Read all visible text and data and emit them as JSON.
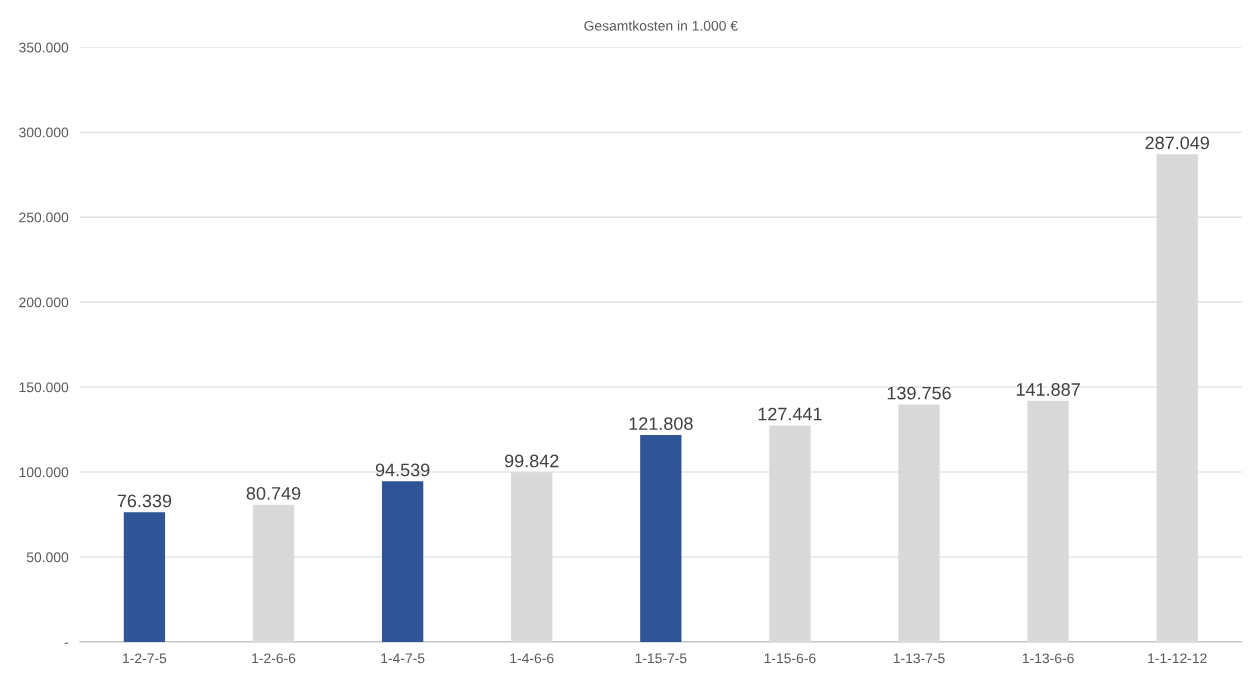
{
  "chart_data": {
    "type": "bar",
    "title": "Gesamtkosten in 1.000 €",
    "categories": [
      "1-2-7-5",
      "1-2-6-6",
      "1-4-7-5",
      "1-4-6-6",
      "1-15-7-5",
      "1-15-6-6",
      "1-13-7-5",
      "1-13-6-6",
      "1-1-12-12"
    ],
    "values": [
      76339,
      80749,
      94539,
      99842,
      121808,
      127441,
      139756,
      141887,
      287049
    ],
    "value_labels": [
      "76.339",
      "80.749",
      "94.539",
      "99.842",
      "121.808",
      "127.441",
      "139.756",
      "141.887",
      "287.049"
    ],
    "colors": [
      "#2f5597",
      "#d9d9d9",
      "#2f5597",
      "#d9d9d9",
      "#2f5597",
      "#d9d9d9",
      "#d9d9d9",
      "#d9d9d9",
      "#d9d9d9"
    ],
    "ylim": [
      0,
      350000
    ],
    "yticks": [
      {
        "value": 0,
        "label": "-"
      },
      {
        "value": 50000,
        "label": "50.000"
      },
      {
        "value": 100000,
        "label": "100.000"
      },
      {
        "value": 150000,
        "label": "150.000"
      },
      {
        "value": 200000,
        "label": "200.000"
      },
      {
        "value": 250000,
        "label": "250.000"
      },
      {
        "value": 300000,
        "label": "300.000"
      },
      {
        "value": 350000,
        "label": "350.000"
      }
    ],
    "grid": "y"
  }
}
